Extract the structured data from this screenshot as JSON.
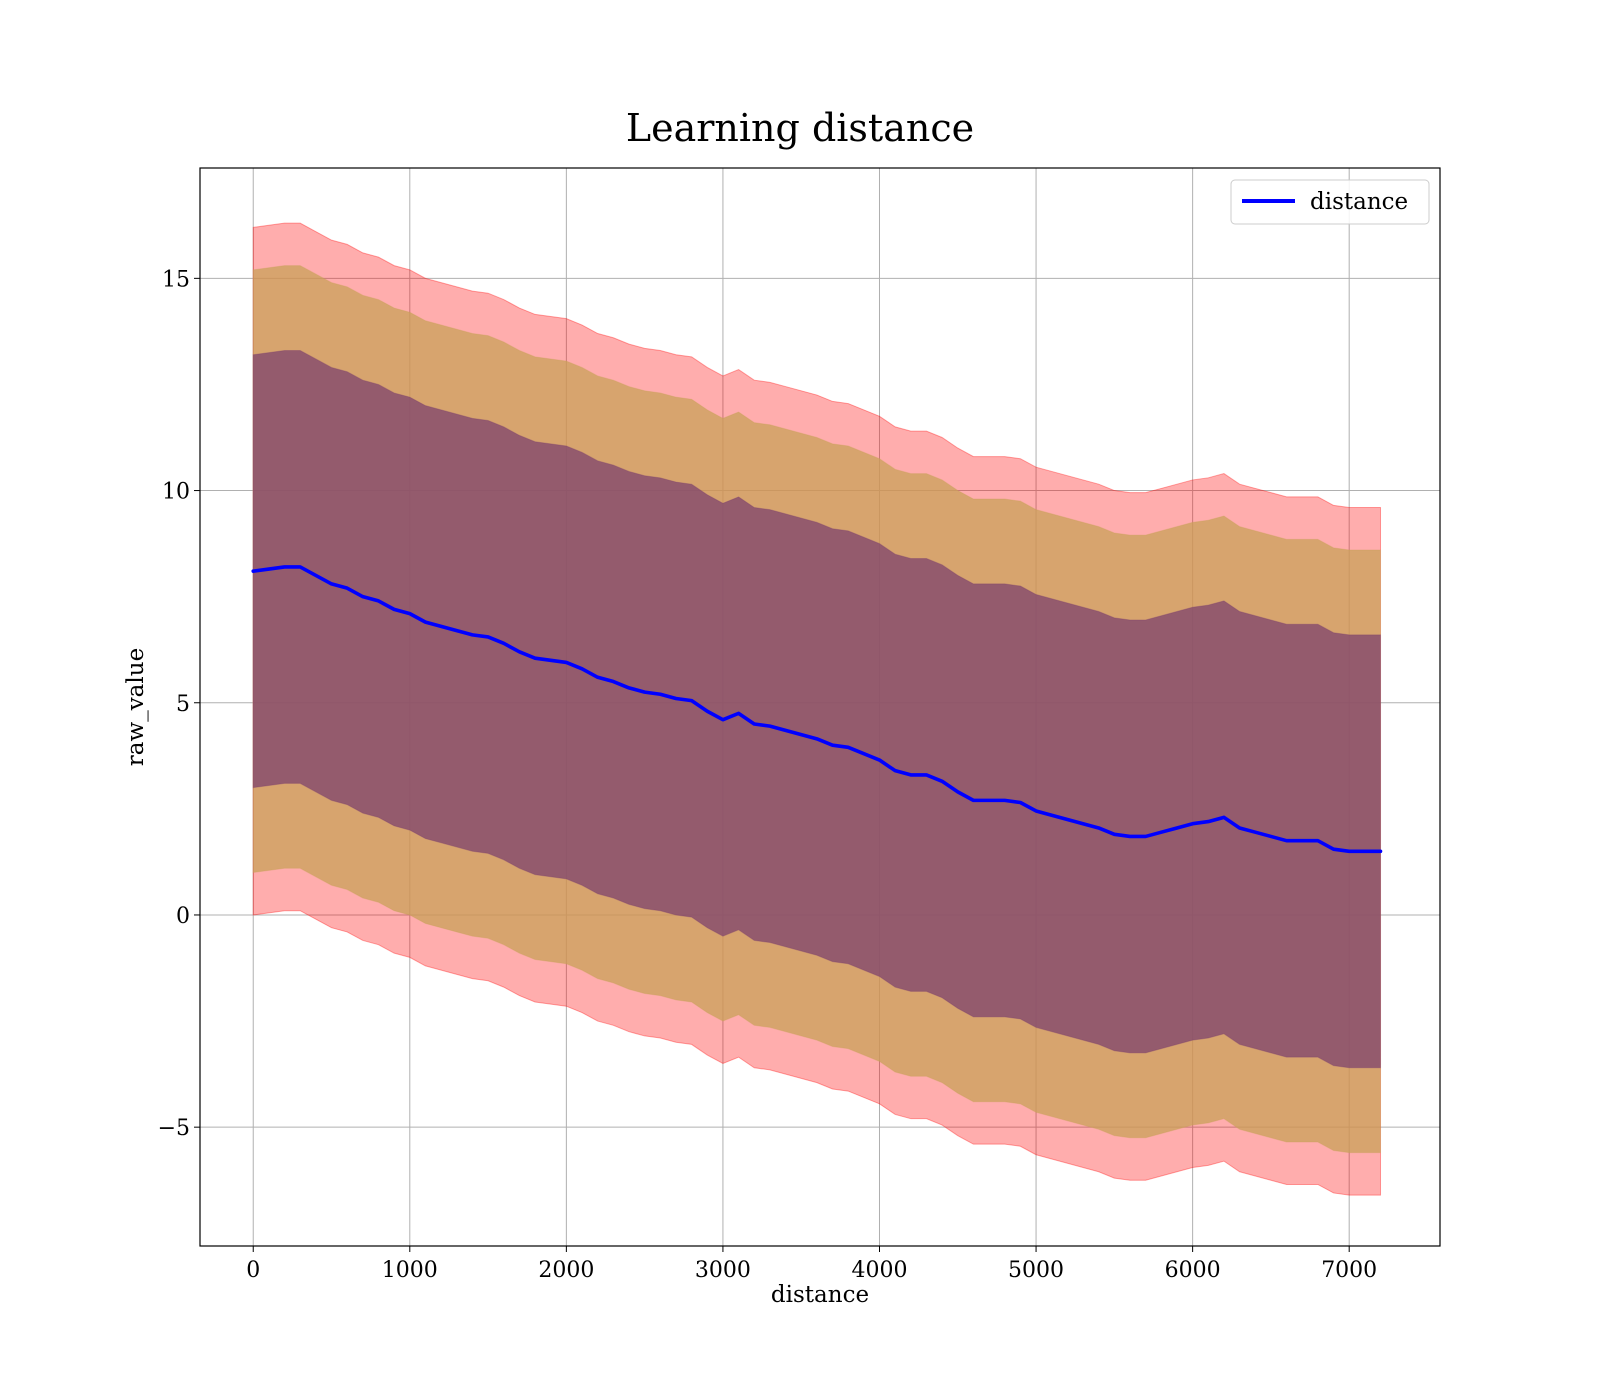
{
  "chart_data": {
    "type": "line",
    "title": "Learning distance",
    "xlabel": "distance",
    "ylabel": "raw_value",
    "xlim": [
      -340,
      7580
    ],
    "ylim": [
      -7.8,
      17.6
    ],
    "x_ticks": [
      0,
      1000,
      2000,
      3000,
      4000,
      5000,
      6000,
      7000
    ],
    "y_ticks": [
      -5,
      0,
      5,
      10,
      15
    ],
    "y_tick_labels": [
      "−5",
      "0",
      "5",
      "10",
      "15"
    ],
    "grid": true,
    "legend_position": "upper right",
    "colors": {
      "line": "#0000ff",
      "band_outer": "#ff0000",
      "band_middle": "#c9a15a",
      "band_inner": "#7a3e6e",
      "grid": "#b0b0b0"
    },
    "series": [
      {
        "name": "distance",
        "x": [
          0,
          100,
          200,
          300,
          400,
          500,
          600,
          700,
          800,
          900,
          1000,
          1100,
          1200,
          1300,
          1400,
          1500,
          1600,
          1700,
          1800,
          1900,
          2000,
          2100,
          2200,
          2300,
          2400,
          2500,
          2600,
          2700,
          2800,
          2900,
          3000,
          3100,
          3200,
          3300,
          3400,
          3500,
          3600,
          3700,
          3800,
          3900,
          4000,
          4100,
          4200,
          4300,
          4400,
          4500,
          4600,
          4700,
          4800,
          4900,
          5000,
          5100,
          5200,
          5300,
          5400,
          5500,
          5600,
          5700,
          5800,
          5900,
          6000,
          6100,
          6200,
          6300,
          6400,
          6500,
          6600,
          6700,
          6800,
          6900,
          7000,
          7100,
          7200
        ],
        "y": [
          8.1,
          8.15,
          8.2,
          8.2,
          8.0,
          7.8,
          7.7,
          7.5,
          7.4,
          7.2,
          7.1,
          6.9,
          6.8,
          6.7,
          6.6,
          6.55,
          6.4,
          6.2,
          6.05,
          6.0,
          5.95,
          5.8,
          5.6,
          5.5,
          5.35,
          5.25,
          5.2,
          5.1,
          5.05,
          4.8,
          4.6,
          4.75,
          4.5,
          4.45,
          4.35,
          4.25,
          4.15,
          4.0,
          3.95,
          3.8,
          3.65,
          3.4,
          3.3,
          3.3,
          3.15,
          2.9,
          2.7,
          2.7,
          2.7,
          2.65,
          2.45,
          2.35,
          2.25,
          2.15,
          2.05,
          1.9,
          1.85,
          1.85,
          1.95,
          2.05,
          2.15,
          2.2,
          2.3,
          2.05,
          1.95,
          1.85,
          1.75,
          1.75,
          1.75,
          1.55,
          1.5,
          1.5,
          1.5
        ],
        "bands": [
          {
            "name": "outer",
            "offset_upper": 8.1,
            "offset_lower": 8.1
          },
          {
            "name": "middle",
            "offset_upper": 7.1,
            "offset_lower": 7.1
          },
          {
            "name": "inner",
            "offset_upper": 5.1,
            "offset_lower": 5.1
          }
        ]
      }
    ]
  }
}
